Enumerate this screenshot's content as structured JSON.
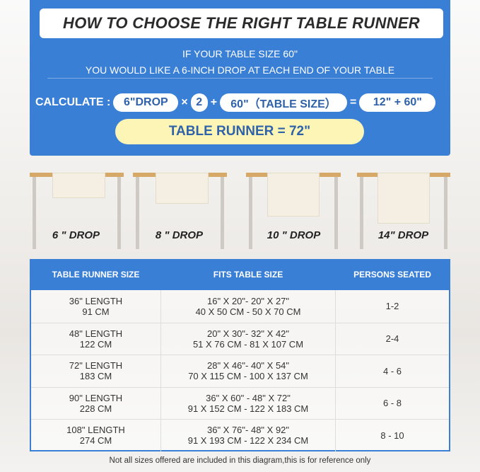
{
  "title": "HOW TO CHOOSE THE RIGHT TABLE RUNNER",
  "intro": [
    "IF YOUR TABLE SIZE 60\"",
    "YOU WOULD LIKE A 6-INCH DROP AT EACH END OF YOUR TABLE"
  ],
  "calc": {
    "label": "CALCULATE :",
    "drop": "6\"DROP",
    "times": "×",
    "two": "2",
    "plus": "+",
    "size": "60\"（TABLE SIZE）",
    "equals": "=",
    "sum": "12\" + 60\"",
    "result": "TABLE RUNNER = 72\""
  },
  "drops": [
    "6 \" DROP",
    "8 \" DROP",
    "10 \" DROP",
    "14\" DROP"
  ],
  "table": {
    "headers": [
      "TABLE RUNNER SIZE",
      "FITS TABLE SIZE",
      "PERSONS SEATED"
    ],
    "rows": [
      {
        "len": "36\" LENGTH",
        "cm": "91 CM",
        "fit_in": "16\" X 20\"- 20\" X 27\"",
        "fit_cm": "40 X 50 CM - 50 X 70 CM",
        "persons": "1-2"
      },
      {
        "len": "48\" LENGTH",
        "cm": "122 CM",
        "fit_in": "20\" X 30\"- 32\" X 42\"",
        "fit_cm": "51 X 76 CM - 81 X 107 CM",
        "persons": "2-4"
      },
      {
        "len": "72\" LENGTH",
        "cm": "183 CM",
        "fit_in": "28\" X 46\"- 40\" X 54\"",
        "fit_cm": "70 X 115 CM - 100 X 137 CM",
        "persons": "4 - 6"
      },
      {
        "len": "90\" LENGTH",
        "cm": "228 CM",
        "fit_in": "36\" X 60\" - 48\" X 72\"",
        "fit_cm": "91 X 152 CM - 122 X 183 CM",
        "persons": "6 - 8"
      },
      {
        "len": "108\" LENGTH",
        "cm": "274 CM",
        "fit_in": "36\" X 76\"- 48\" X 92\"",
        "fit_cm": "91 X 193 CM - 122 X 234 CM",
        "persons": "8 - 10"
      }
    ]
  },
  "footer": "Not all sizes offered are included in this diagram,this is for reference only",
  "colors": {
    "blue": "#3a7fd6",
    "yellow": "#fdf5b6"
  }
}
